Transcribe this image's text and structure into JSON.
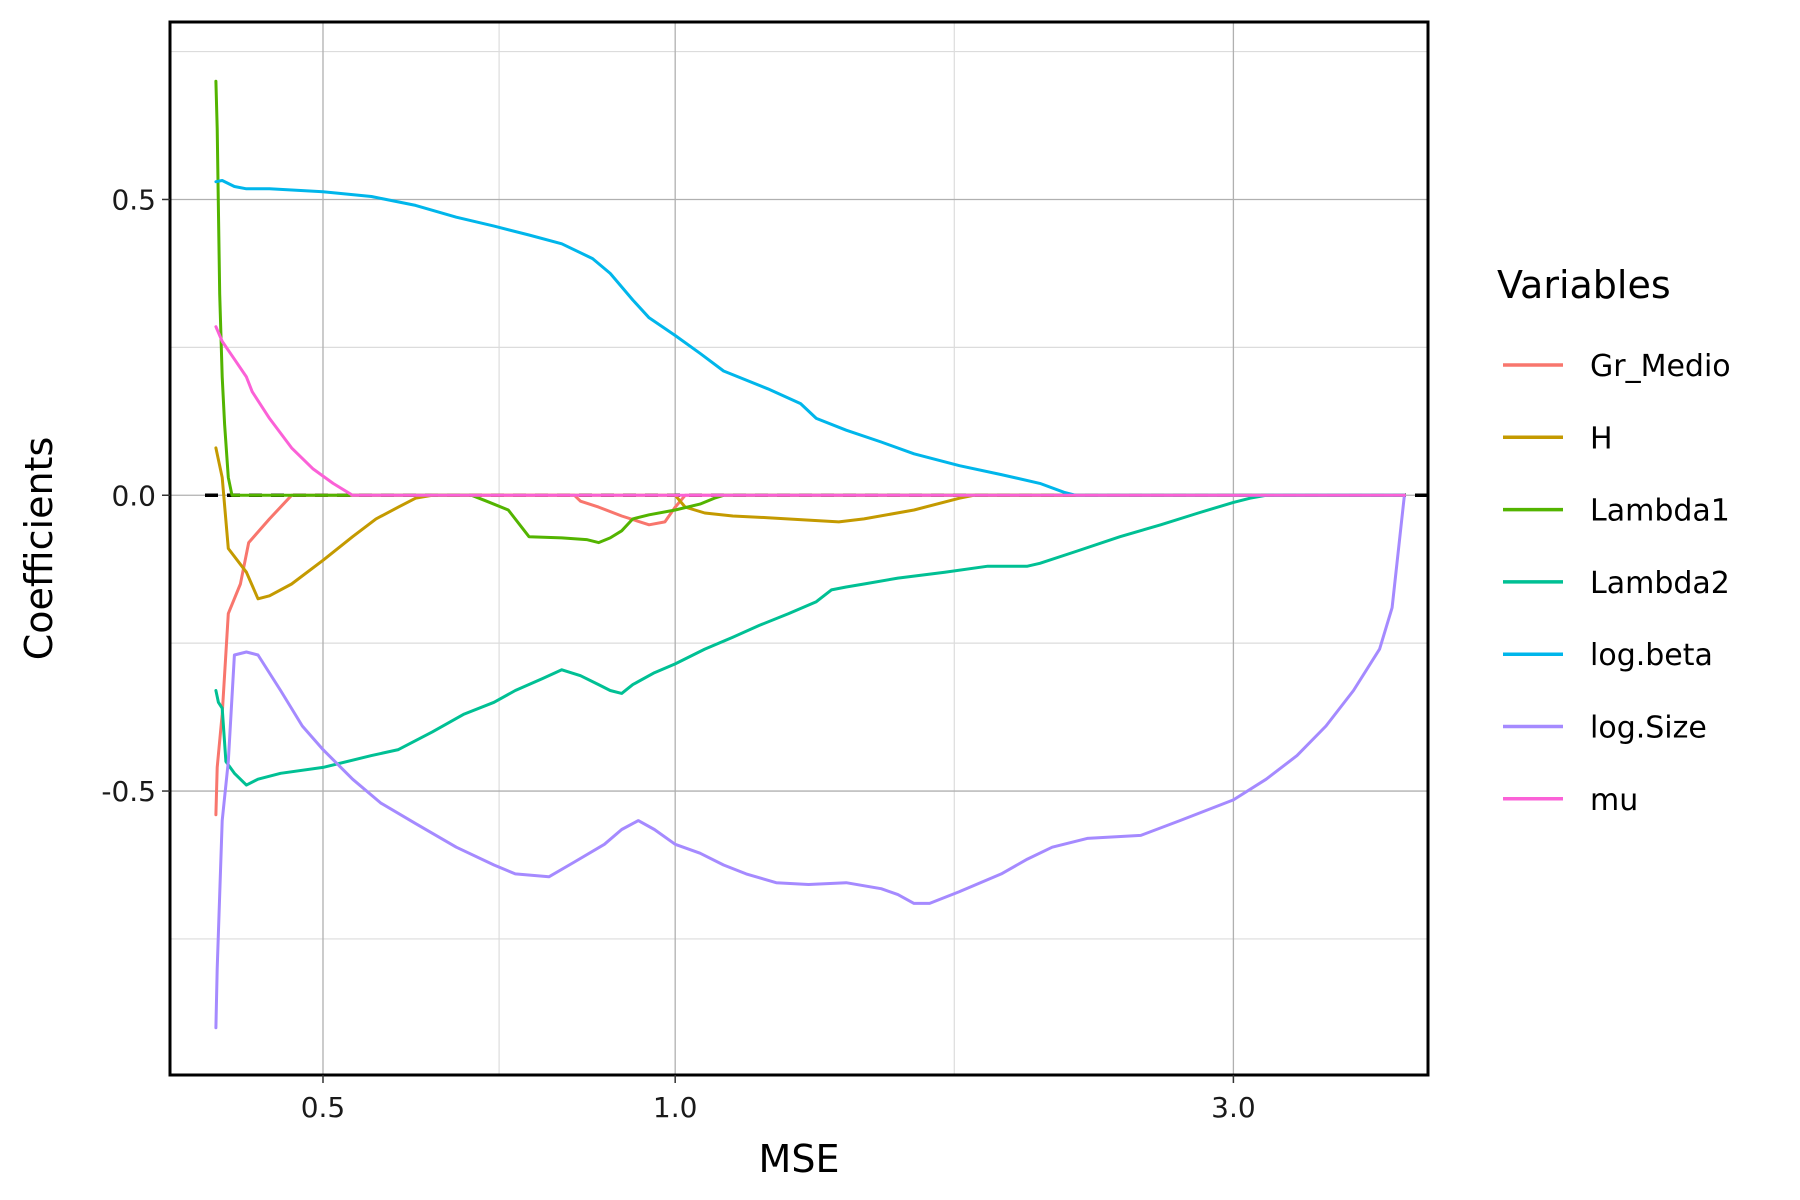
{
  "chart_data": {
    "type": "line",
    "xlabel": "MSE",
    "ylabel": "Coefficients",
    "x_scale": "log",
    "xlim": [
      0.37,
      4.4
    ],
    "ylim": [
      -0.98,
      0.8
    ],
    "x_ticks": [
      0.5,
      1.0,
      3.0
    ],
    "x_tick_labels": [
      "0.5",
      "1.0",
      "3.0"
    ],
    "y_ticks": [
      -0.5,
      0.0,
      0.5
    ],
    "y_tick_labels": [
      "-0.5",
      "0.0",
      "0.5"
    ],
    "grid": true,
    "zero_line": {
      "y": 0,
      "style": "dashed",
      "color": "#000000"
    },
    "legend": {
      "title": "Variables",
      "position": "right"
    },
    "series": [
      {
        "name": "Gr_Medio",
        "color": "#F8766D",
        "points": [
          [
            0.405,
            -0.54
          ],
          [
            0.406,
            -0.46
          ],
          [
            0.41,
            -0.37
          ],
          [
            0.415,
            -0.2
          ],
          [
            0.425,
            -0.15
          ],
          [
            0.432,
            -0.08
          ],
          [
            0.45,
            -0.04
          ],
          [
            0.47,
            0.0
          ],
          [
            0.82,
            0.0
          ],
          [
            0.83,
            -0.01
          ],
          [
            0.86,
            -0.02
          ],
          [
            0.9,
            -0.035
          ],
          [
            0.95,
            -0.05
          ],
          [
            0.98,
            -0.045
          ],
          [
            1.0,
            -0.02
          ],
          [
            1.02,
            0.0
          ],
          [
            4.2,
            0.0
          ]
        ]
      },
      {
        "name": "H",
        "color": "#C49A00",
        "points": [
          [
            0.405,
            0.08
          ],
          [
            0.41,
            0.03
          ],
          [
            0.415,
            -0.09
          ],
          [
            0.43,
            -0.13
          ],
          [
            0.44,
            -0.175
          ],
          [
            0.45,
            -0.17
          ],
          [
            0.47,
            -0.15
          ],
          [
            0.5,
            -0.11
          ],
          [
            0.53,
            -0.07
          ],
          [
            0.555,
            -0.04
          ],
          [
            0.58,
            -0.02
          ],
          [
            0.6,
            -0.005
          ],
          [
            0.62,
            0.0
          ],
          [
            1.0,
            0.0
          ],
          [
            1.02,
            -0.02
          ],
          [
            1.06,
            -0.03
          ],
          [
            1.12,
            -0.035
          ],
          [
            1.2,
            -0.038
          ],
          [
            1.3,
            -0.042
          ],
          [
            1.38,
            -0.045
          ],
          [
            1.45,
            -0.04
          ],
          [
            1.6,
            -0.025
          ],
          [
            1.75,
            -0.005
          ],
          [
            1.8,
            0.0
          ],
          [
            4.2,
            0.0
          ]
        ]
      },
      {
        "name": "Lambda1",
        "color": "#53B400",
        "points": [
          [
            0.405,
            0.7
          ],
          [
            0.406,
            0.62
          ],
          [
            0.408,
            0.34
          ],
          [
            0.41,
            0.2
          ],
          [
            0.412,
            0.12
          ],
          [
            0.415,
            0.03
          ],
          [
            0.418,
            0.0
          ],
          [
            0.67,
            0.0
          ],
          [
            0.69,
            -0.01
          ],
          [
            0.72,
            -0.025
          ],
          [
            0.75,
            -0.07
          ],
          [
            0.8,
            -0.072
          ],
          [
            0.84,
            -0.075
          ],
          [
            0.86,
            -0.08
          ],
          [
            0.88,
            -0.072
          ],
          [
            0.9,
            -0.06
          ],
          [
            0.92,
            -0.04
          ],
          [
            0.95,
            -0.033
          ],
          [
            1.0,
            -0.025
          ],
          [
            1.05,
            -0.015
          ],
          [
            1.08,
            -0.005
          ],
          [
            1.1,
            0.0
          ],
          [
            4.2,
            0.0
          ]
        ]
      },
      {
        "name": "Lambda2",
        "color": "#00C094",
        "points": [
          [
            0.405,
            -0.33
          ],
          [
            0.407,
            -0.35
          ],
          [
            0.41,
            -0.36
          ],
          [
            0.413,
            -0.45
          ],
          [
            0.42,
            -0.47
          ],
          [
            0.43,
            -0.49
          ],
          [
            0.44,
            -0.48
          ],
          [
            0.46,
            -0.47
          ],
          [
            0.5,
            -0.46
          ],
          [
            0.55,
            -0.44
          ],
          [
            0.58,
            -0.43
          ],
          [
            0.62,
            -0.4
          ],
          [
            0.66,
            -0.37
          ],
          [
            0.7,
            -0.35
          ],
          [
            0.73,
            -0.33
          ],
          [
            0.77,
            -0.31
          ],
          [
            0.8,
            -0.295
          ],
          [
            0.83,
            -0.305
          ],
          [
            0.86,
            -0.32
          ],
          [
            0.88,
            -0.33
          ],
          [
            0.9,
            -0.335
          ],
          [
            0.92,
            -0.32
          ],
          [
            0.96,
            -0.3
          ],
          [
            1.0,
            -0.285
          ],
          [
            1.06,
            -0.26
          ],
          [
            1.12,
            -0.24
          ],
          [
            1.18,
            -0.22
          ],
          [
            1.25,
            -0.2
          ],
          [
            1.32,
            -0.18
          ],
          [
            1.36,
            -0.16
          ],
          [
            1.4,
            -0.155
          ],
          [
            1.45,
            -0.15
          ],
          [
            1.55,
            -0.14
          ],
          [
            1.7,
            -0.13
          ],
          [
            1.85,
            -0.12
          ],
          [
            2.0,
            -0.12
          ],
          [
            2.05,
            -0.115
          ],
          [
            2.2,
            -0.095
          ],
          [
            2.4,
            -0.07
          ],
          [
            2.6,
            -0.05
          ],
          [
            2.8,
            -0.03
          ],
          [
            3.0,
            -0.012
          ],
          [
            3.1,
            -0.005
          ],
          [
            3.2,
            0.0
          ],
          [
            4.2,
            0.0
          ]
        ]
      },
      {
        "name": "log.beta",
        "color": "#00B6EB",
        "points": [
          [
            0.405,
            0.53
          ],
          [
            0.41,
            0.532
          ],
          [
            0.42,
            0.522
          ],
          [
            0.43,
            0.518
          ],
          [
            0.45,
            0.518
          ],
          [
            0.5,
            0.513
          ],
          [
            0.55,
            0.505
          ],
          [
            0.6,
            0.49
          ],
          [
            0.65,
            0.47
          ],
          [
            0.7,
            0.455
          ],
          [
            0.75,
            0.44
          ],
          [
            0.8,
            0.425
          ],
          [
            0.85,
            0.4
          ],
          [
            0.88,
            0.375
          ],
          [
            0.92,
            0.33
          ],
          [
            0.95,
            0.3
          ],
          [
            1.0,
            0.27
          ],
          [
            1.05,
            0.24
          ],
          [
            1.1,
            0.21
          ],
          [
            1.2,
            0.18
          ],
          [
            1.28,
            0.155
          ],
          [
            1.32,
            0.13
          ],
          [
            1.4,
            0.11
          ],
          [
            1.5,
            0.09
          ],
          [
            1.6,
            0.07
          ],
          [
            1.75,
            0.05
          ],
          [
            1.9,
            0.035
          ],
          [
            2.05,
            0.02
          ],
          [
            2.15,
            0.005
          ],
          [
            2.2,
            0.0
          ],
          [
            4.2,
            0.0
          ]
        ]
      },
      {
        "name": "log.Size",
        "color": "#A58AFF",
        "points": [
          [
            0.405,
            -0.9
          ],
          [
            0.406,
            -0.8
          ],
          [
            0.41,
            -0.55
          ],
          [
            0.415,
            -0.45
          ],
          [
            0.42,
            -0.27
          ],
          [
            0.43,
            -0.265
          ],
          [
            0.44,
            -0.27
          ],
          [
            0.46,
            -0.33
          ],
          [
            0.48,
            -0.39
          ],
          [
            0.5,
            -0.43
          ],
          [
            0.53,
            -0.48
          ],
          [
            0.56,
            -0.52
          ],
          [
            0.6,
            -0.555
          ],
          [
            0.65,
            -0.595
          ],
          [
            0.7,
            -0.625
          ],
          [
            0.73,
            -0.64
          ],
          [
            0.78,
            -0.645
          ],
          [
            0.82,
            -0.62
          ],
          [
            0.87,
            -0.59
          ],
          [
            0.9,
            -0.565
          ],
          [
            0.93,
            -0.55
          ],
          [
            0.96,
            -0.565
          ],
          [
            1.0,
            -0.59
          ],
          [
            1.05,
            -0.605
          ],
          [
            1.1,
            -0.625
          ],
          [
            1.15,
            -0.64
          ],
          [
            1.22,
            -0.655
          ],
          [
            1.3,
            -0.658
          ],
          [
            1.4,
            -0.655
          ],
          [
            1.5,
            -0.665
          ],
          [
            1.55,
            -0.675
          ],
          [
            1.6,
            -0.69
          ],
          [
            1.65,
            -0.69
          ],
          [
            1.75,
            -0.67
          ],
          [
            1.9,
            -0.64
          ],
          [
            2.0,
            -0.615
          ],
          [
            2.1,
            -0.595
          ],
          [
            2.25,
            -0.58
          ],
          [
            2.5,
            -0.575
          ],
          [
            2.7,
            -0.55
          ],
          [
            3.0,
            -0.515
          ],
          [
            3.2,
            -0.48
          ],
          [
            3.4,
            -0.44
          ],
          [
            3.6,
            -0.39
          ],
          [
            3.8,
            -0.33
          ],
          [
            4.0,
            -0.26
          ],
          [
            4.1,
            -0.19
          ],
          [
            4.2,
            0.0
          ]
        ]
      },
      {
        "name": "mu",
        "color": "#FB61D7",
        "points": [
          [
            0.405,
            0.285
          ],
          [
            0.41,
            0.26
          ],
          [
            0.42,
            0.23
          ],
          [
            0.43,
            0.2
          ],
          [
            0.435,
            0.175
          ],
          [
            0.45,
            0.13
          ],
          [
            0.47,
            0.08
          ],
          [
            0.49,
            0.045
          ],
          [
            0.51,
            0.02
          ],
          [
            0.53,
            0.0
          ],
          [
            4.2,
            0.0
          ]
        ]
      }
    ]
  }
}
